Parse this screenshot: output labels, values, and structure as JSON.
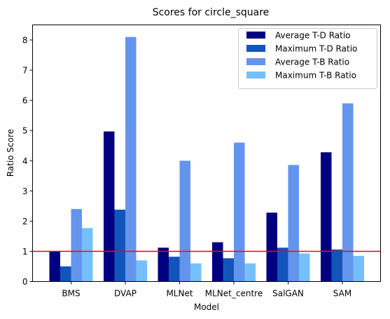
{
  "chart_data": {
    "type": "bar",
    "title": "Scores for circle_square",
    "xlabel": "Model",
    "ylabel": "Ratio Score",
    "categories": [
      "BMS",
      "DVAP",
      "MLNet",
      "MLNet_centre",
      "SalGAN",
      "SAM"
    ],
    "series": [
      {
        "name": "Average T-D Ratio",
        "color": "#000080",
        "values": [
          1.0,
          4.97,
          1.12,
          1.3,
          2.28,
          4.28
        ]
      },
      {
        "name": "Maximum T-D Ratio",
        "color": "#1155bb",
        "values": [
          0.5,
          2.38,
          0.82,
          0.77,
          1.12,
          1.06
        ]
      },
      {
        "name": "Average T-B Ratio",
        "color": "#6495ed",
        "values": [
          2.4,
          8.1,
          4.0,
          4.6,
          3.86,
          5.9
        ]
      },
      {
        "name": "Maximum T-B Ratio",
        "color": "#75c0fa",
        "values": [
          1.77,
          0.7,
          0.6,
          0.6,
          0.93,
          0.85
        ]
      }
    ],
    "ylim": [
      0,
      8.5
    ],
    "yticks": [
      0,
      1,
      2,
      3,
      4,
      5,
      6,
      7,
      8
    ],
    "reference_line": {
      "y": 1,
      "color": "#ff0000"
    },
    "grid": false,
    "legend_position": "top-right"
  }
}
